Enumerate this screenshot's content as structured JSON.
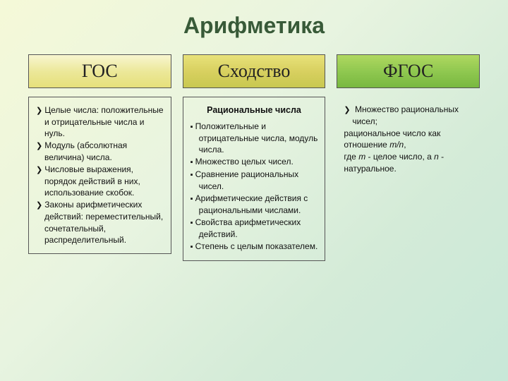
{
  "title": "Арифметика",
  "columns": {
    "gos": {
      "header": "ГОС",
      "items": [
        "Целые числа: положительные и отрицательные числа и нуль.",
        "Модуль (абсолютная величина) числа.",
        "Числовые выражения, порядок действий в них, использование скобок.",
        "Законы арифметических действий: переместительный, сочетательный, распределительный."
      ]
    },
    "sim": {
      "header": "Сходство",
      "subhead": "Рациональные числа",
      "items": [
        "Положительные и отрицательные числа, модуль числа.",
        "Множество целых чисел.",
        "Сравнение рациональных чисел.",
        "Арифметические действия с рациональными числами.",
        "Свойства арифметических действий.",
        "Степень с целым показателем."
      ]
    },
    "fgos": {
      "header": "ФГОС",
      "line1_prefix": "Множество рациональных чисел;",
      "line2": "рациональное число как отношение ",
      "line2_ital": "m/n",
      "line2_suffix": ",",
      "line3_a": "где ",
      "line3_m": "m",
      "line3_b": " - целое число, а ",
      "line3_n": "n",
      "line3_c": " - натуральное."
    }
  },
  "colors": {
    "title": "#385a38",
    "border": "#555555",
    "gos_grad": [
      "#f8f6d0",
      "#e6e07a"
    ],
    "sim_grad": [
      "#e8e27a",
      "#c8c850"
    ],
    "fgos_grad": [
      "#b0d860",
      "#78b840"
    ]
  },
  "fontsizes": {
    "title": 32,
    "header": 26,
    "body": 12
  }
}
